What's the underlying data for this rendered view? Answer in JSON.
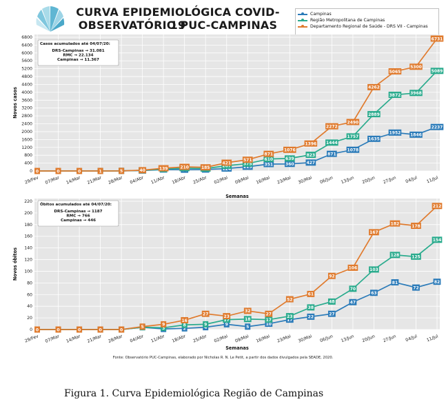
{
  "header": {
    "title_line1": "CURVA EPIDEMIOLÓGICA COVID-19",
    "title_line2": "OBSERVATÓRIO PUC-CAMPINAS"
  },
  "legend": [
    {
      "name": "Campinas",
      "color": "#2b7bb9"
    },
    {
      "name": "Região Metropolitana de Campinas",
      "color": "#2aab8d"
    },
    {
      "name": "Departamento Regional de Saúde - DRS VII - Campinas",
      "color": "#e07b2e"
    }
  ],
  "colors": {
    "campinas": "#2b7bb9",
    "rmc": "#2aab8d",
    "drs": "#e07b2e",
    "plot_bg": "#e6e6e6",
    "grid": "#ffffff"
  },
  "source_note": "Fonte: Observatório PUC-Campinas, elaborado por Nicholas R. N. Le Petit, a partir dos dados divulgados pela SEADE, 2020.",
  "figure_caption": "Figura 1. Curva Epidemiológica Região de Campinas",
  "chart_data": [
    {
      "type": "line",
      "xlabel": "Semanas",
      "ylabel": "Novos casos",
      "ylim": [
        0,
        6800
      ],
      "yticks": [
        0,
        400,
        800,
        1200,
        1600,
        2000,
        2400,
        2800,
        3200,
        3600,
        4000,
        4400,
        4800,
        5200,
        5600,
        6000,
        6400,
        6800
      ],
      "grid": true,
      "categories": [
        "29/Fev",
        "07/Mar",
        "14/Mar",
        "21/Mar",
        "28/Mar",
        "04/Abr",
        "11/Abr",
        "18/Abr",
        "25/Abr",
        "02/Mai",
        "09/Mai",
        "16/Mai",
        "23/Mai",
        "30/Mai",
        "06/Jun",
        "13/Jun",
        "20/Jun",
        "27/Jun",
        "04/Jul",
        "11/Jul"
      ],
      "annotation_title": "Casos acumulados até 04/07/20:",
      "annotation_lines": [
        "DRS-Campinas → 31.081",
        "RMC → 22.134",
        "Campinas → 11.367"
      ],
      "series": [
        {
          "name": "Campinas",
          "color": "#2b7bb9",
          "values": [
            0,
            0,
            0,
            1,
            4,
            21,
            74,
            64,
            72,
            124,
            215,
            351,
            360,
            427,
            871,
            1078,
            1635,
            1952,
            1846,
            2237
          ]
        },
        {
          "name": "Região Metropolitana de Campinas",
          "color": "#2aab8d",
          "values": [
            0,
            0,
            0,
            1,
            5,
            32,
            96,
            145,
            123,
            267,
            375,
            610,
            639,
            823,
            1444,
            1757,
            2889,
            3872,
            3968,
            5089
          ]
        },
        {
          "name": "Departamento Regional de Saúde - DRS VII - Campinas",
          "color": "#e07b2e",
          "values": [
            0,
            0,
            0,
            1,
            5,
            40,
            139,
            210,
            185,
            421,
            571,
            871,
            1076,
            1396,
            2272,
            2490,
            4262,
            5065,
            5300,
            6731
          ]
        }
      ]
    },
    {
      "type": "line",
      "xlabel": "Semanas",
      "ylabel": "Novos óbitos",
      "ylim": [
        0,
        220
      ],
      "yticks": [
        0,
        20,
        40,
        60,
        80,
        100,
        120,
        140,
        160,
        180,
        200,
        220
      ],
      "grid": true,
      "categories": [
        "29/Fev",
        "07/Mar",
        "14/Mar",
        "21/Mar",
        "28/Mar",
        "04/Abr",
        "11/Abr",
        "18/Abr",
        "25/Abr",
        "02/Mai",
        "09/Mai",
        "16/Mai",
        "23/Mai",
        "30/Mai",
        "06/Jun",
        "13/Jun",
        "20/Jun",
        "27/Jun",
        "04/Jul",
        "11/Jul"
      ],
      "annotation_title": "Óbitos acumulados até 04/07/20:",
      "annotation_lines": [
        "DRS-Campinas → 1187",
        "RMC → 766",
        "Campinas → 446"
      ],
      "series": [
        {
          "name": "Campinas",
          "color": "#2b7bb9",
          "values": [
            0,
            0,
            0,
            0,
            0,
            4,
            1,
            2,
            4,
            9,
            5,
            10,
            17,
            22,
            27,
            47,
            63,
            81,
            72,
            82
          ]
        },
        {
          "name": "Região Metropolitana de Campinas",
          "color": "#2aab8d",
          "values": [
            0,
            0,
            0,
            0,
            0,
            4,
            3,
            8,
            9,
            17,
            18,
            17,
            23,
            38,
            48,
            70,
            103,
            128,
            125,
            154
          ]
        },
        {
          "name": "Departamento Regional de Saúde - DRS VII - Campinas",
          "color": "#e07b2e",
          "values": [
            0,
            0,
            0,
            0,
            0,
            5,
            9,
            16,
            27,
            23,
            32,
            27,
            52,
            61,
            92,
            106,
            167,
            182,
            178,
            212
          ]
        }
      ]
    }
  ]
}
